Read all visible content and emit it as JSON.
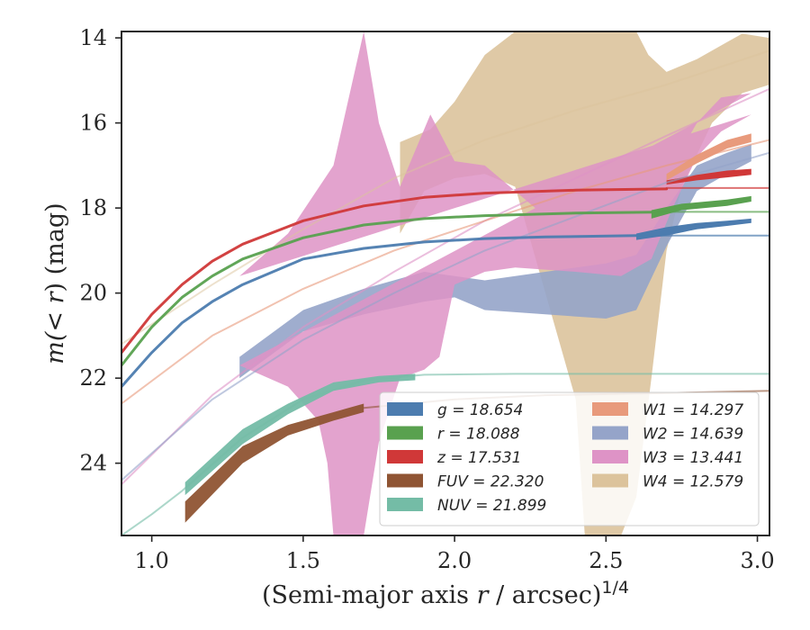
{
  "chart_data": {
    "type": "line",
    "xlabel": {
      "pre": "(Semi-major axis ",
      "var": "r",
      "post": " / arcsec)",
      "sup": "1/4"
    },
    "ylabel": {
      "pre": "m(",
      "var": "< r",
      "post": ") (mag)"
    },
    "xlim": [
      0.9,
      3.04
    ],
    "ylim": [
      25.7,
      13.85
    ],
    "y_inverted": true,
    "xticks": [
      1.0,
      1.5,
      2.0,
      2.5,
      3.0
    ],
    "xtick_labels": [
      "1.0",
      "1.5",
      "2.0",
      "2.5",
      "3.0"
    ],
    "yticks": [
      14,
      16,
      18,
      20,
      22,
      24
    ],
    "ytick_labels": [
      "14",
      "16",
      "18",
      "20",
      "22",
      "24"
    ],
    "grid": false,
    "legend_placement": "lower-right",
    "legend": [
      {
        "label": "g = 18.654",
        "color": "#4c7caf"
      },
      {
        "label": "r = 18.088",
        "color": "#59a14f"
      },
      {
        "label": "z = 17.531",
        "color": "#d03838"
      },
      {
        "label": "FUV = 22.320",
        "color": "#8f5433"
      },
      {
        "label": "NUV = 21.899",
        "color": "#74bca6"
      },
      {
        "label": "W1 = 14.297",
        "color": "#e89a7c"
      },
      {
        "label": "W2 = 14.639",
        "color": "#95a4c9"
      },
      {
        "label": "W3 = 13.441",
        "color": "#de93c6"
      },
      {
        "label": "W4 = 12.579",
        "color": "#dcc39c"
      }
    ],
    "bands": [
      {
        "name": "W4",
        "color": "#dcc39c",
        "opacity": 0.9,
        "upper": [
          [
            1.82,
            16.45
          ],
          [
            1.92,
            16.15
          ],
          [
            2.0,
            15.5
          ],
          [
            2.1,
            14.4
          ],
          [
            2.2,
            13.85
          ],
          [
            2.6,
            13.85
          ],
          [
            2.64,
            14.4
          ],
          [
            2.7,
            14.8
          ],
          [
            2.8,
            14.5
          ],
          [
            2.9,
            14.1
          ],
          [
            2.95,
            13.9
          ],
          [
            3.04,
            14.0
          ]
        ],
        "lower": [
          [
            1.82,
            18.6
          ],
          [
            1.9,
            17.6
          ],
          [
            2.0,
            17.3
          ],
          [
            2.1,
            17.2
          ],
          [
            2.2,
            17.5
          ],
          [
            2.3,
            20.0
          ],
          [
            2.4,
            22.5
          ],
          [
            2.43,
            25.7
          ],
          [
            2.55,
            25.7
          ],
          [
            2.6,
            24.8
          ],
          [
            2.65,
            22.0
          ],
          [
            2.7,
            19.0
          ],
          [
            2.75,
            17.5
          ],
          [
            2.85,
            16.0
          ],
          [
            2.95,
            15.3
          ],
          [
            3.04,
            15.1
          ]
        ]
      },
      {
        "name": "W2",
        "color": "#95a4c9",
        "opacity": 0.9,
        "upper": [
          [
            1.29,
            21.5
          ],
          [
            1.5,
            20.4
          ],
          [
            1.7,
            19.9
          ],
          [
            1.9,
            19.5
          ],
          [
            2.0,
            19.6
          ],
          [
            2.1,
            19.7
          ],
          [
            2.3,
            19.5
          ],
          [
            2.5,
            19.3
          ],
          [
            2.6,
            19.1
          ],
          [
            2.7,
            18.0
          ],
          [
            2.8,
            17.0
          ],
          [
            2.9,
            16.7
          ],
          [
            2.98,
            16.5
          ]
        ],
        "lower": [
          [
            1.29,
            22.0
          ],
          [
            1.5,
            20.9
          ],
          [
            1.7,
            20.5
          ],
          [
            1.9,
            20.2
          ],
          [
            2.0,
            20.1
          ],
          [
            2.1,
            20.4
          ],
          [
            2.3,
            20.5
          ],
          [
            2.5,
            20.6
          ],
          [
            2.6,
            20.4
          ],
          [
            2.7,
            18.9
          ],
          [
            2.8,
            17.6
          ],
          [
            2.9,
            17.2
          ],
          [
            2.98,
            16.9
          ]
        ]
      },
      {
        "name": "W3",
        "color": "#de93c6",
        "opacity": 0.85,
        "upper": [
          [
            1.29,
            19.6
          ],
          [
            1.45,
            18.6
          ],
          [
            1.6,
            17.0
          ],
          [
            1.7,
            13.85
          ],
          [
            1.75,
            16.0
          ],
          [
            1.82,
            17.5
          ],
          [
            1.92,
            15.8
          ],
          [
            2.0,
            16.9
          ],
          [
            2.1,
            17.0
          ],
          [
            2.2,
            17.6
          ],
          [
            2.3,
            18.2
          ],
          [
            2.4,
            18.4
          ],
          [
            2.55,
            18.6
          ],
          [
            2.63,
            18.6
          ],
          [
            2.68,
            18.0
          ],
          [
            2.72,
            17.0
          ],
          [
            2.8,
            16.0
          ],
          [
            2.88,
            15.4
          ],
          [
            2.98,
            15.3
          ]
        ],
        "lower": [
          [
            2.98,
            15.8
          ],
          [
            2.88,
            16.2
          ],
          [
            2.8,
            16.8
          ],
          [
            2.72,
            18.0
          ],
          [
            2.65,
            19.2
          ],
          [
            2.55,
            19.6
          ],
          [
            2.4,
            19.5
          ],
          [
            2.2,
            19.4
          ],
          [
            2.1,
            19.5
          ],
          [
            2.0,
            19.8
          ],
          [
            1.95,
            21.5
          ],
          [
            1.9,
            21.8
          ],
          [
            1.82,
            22.0
          ],
          [
            1.75,
            23.5
          ],
          [
            1.7,
            25.7
          ],
          [
            1.6,
            25.7
          ],
          [
            1.58,
            24.0
          ],
          [
            1.55,
            23.0
          ],
          [
            1.45,
            22.2
          ],
          [
            1.29,
            21.7
          ]
        ]
      },
      {
        "name": "NUV",
        "color": "#74bca6",
        "opacity": 0.95,
        "upper": [
          [
            1.11,
            24.45
          ],
          [
            1.3,
            23.2
          ],
          [
            1.45,
            22.6
          ],
          [
            1.6,
            22.1
          ],
          [
            1.75,
            21.95
          ],
          [
            1.87,
            21.9
          ]
        ],
        "lower": [
          [
            1.11,
            24.75
          ],
          [
            1.3,
            23.55
          ],
          [
            1.45,
            22.85
          ],
          [
            1.6,
            22.3
          ],
          [
            1.75,
            22.1
          ],
          [
            1.87,
            22.05
          ]
        ]
      },
      {
        "name": "FUV",
        "color": "#8f5433",
        "opacity": 0.95,
        "upper": [
          [
            1.11,
            24.9
          ],
          [
            1.3,
            23.6
          ],
          [
            1.45,
            23.1
          ],
          [
            1.6,
            22.8
          ],
          [
            1.7,
            22.6
          ]
        ],
        "lower": [
          [
            1.11,
            25.4
          ],
          [
            1.3,
            24.0
          ],
          [
            1.45,
            23.35
          ],
          [
            1.6,
            23.0
          ],
          [
            1.7,
            22.8
          ]
        ]
      },
      {
        "name": "r",
        "color": "#59a14f",
        "opacity": 1,
        "upper": [
          [
            2.65,
            18.05
          ],
          [
            2.75,
            17.9
          ],
          [
            2.9,
            17.8
          ],
          [
            2.98,
            17.72
          ]
        ],
        "lower": [
          [
            2.65,
            18.25
          ],
          [
            2.75,
            18.05
          ],
          [
            2.9,
            17.95
          ],
          [
            2.98,
            17.85
          ]
        ]
      },
      {
        "name": "z",
        "color": "#d03838",
        "opacity": 1,
        "upper": [
          [
            2.7,
            17.35
          ],
          [
            2.8,
            17.22
          ],
          [
            2.9,
            17.12
          ],
          [
            2.98,
            17.08
          ]
        ],
        "lower": [
          [
            2.7,
            17.45
          ],
          [
            2.8,
            17.35
          ],
          [
            2.9,
            17.28
          ],
          [
            2.98,
            17.22
          ]
        ]
      },
      {
        "name": "g",
        "color": "#4c7caf",
        "opacity": 1,
        "upper": [
          [
            2.6,
            18.6
          ],
          [
            2.7,
            18.45
          ],
          [
            2.8,
            18.35
          ],
          [
            2.9,
            18.3
          ],
          [
            2.98,
            18.25
          ]
        ],
        "lower": [
          [
            2.6,
            18.75
          ],
          [
            2.7,
            18.65
          ],
          [
            2.8,
            18.5
          ],
          [
            2.9,
            18.42
          ],
          [
            2.98,
            18.35
          ]
        ]
      },
      {
        "name": "W1",
        "color": "#e89a7c",
        "opacity": 1,
        "upper": [
          [
            2.7,
            17.2
          ],
          [
            2.8,
            16.75
          ],
          [
            2.9,
            16.4
          ],
          [
            2.98,
            16.25
          ]
        ],
        "lower": [
          [
            2.7,
            17.35
          ],
          [
            2.8,
            16.95
          ],
          [
            2.9,
            16.6
          ],
          [
            2.98,
            16.45
          ]
        ]
      }
    ],
    "curves": [
      {
        "name": "W4",
        "color": "#dcc39c",
        "opacity": 0.5,
        "width": 2,
        "points": [
          [
            0.9,
            21.2
          ],
          [
            1.2,
            19.8
          ],
          [
            1.5,
            18.5
          ],
          [
            1.8,
            17.3
          ],
          [
            2.1,
            16.4
          ],
          [
            2.4,
            15.7
          ],
          [
            2.7,
            15.1
          ],
          [
            3.04,
            14.3
          ]
        ]
      },
      {
        "name": "W3",
        "color": "#de93c6",
        "opacity": 0.6,
        "width": 2,
        "points": [
          [
            0.9,
            24.5
          ],
          [
            1.2,
            22.4
          ],
          [
            1.5,
            20.8
          ],
          [
            1.8,
            19.5
          ],
          [
            2.1,
            18.3
          ],
          [
            2.4,
            17.3
          ],
          [
            2.7,
            16.3
          ],
          [
            3.04,
            15.2
          ]
        ]
      },
      {
        "name": "W2",
        "color": "#95a4c9",
        "opacity": 0.6,
        "width": 2,
        "points": [
          [
            0.9,
            24.4
          ],
          [
            1.2,
            22.5
          ],
          [
            1.5,
            21.1
          ],
          [
            1.8,
            20.0
          ],
          [
            2.1,
            19.0
          ],
          [
            2.4,
            18.2
          ],
          [
            2.7,
            17.4
          ],
          [
            3.04,
            16.7
          ]
        ]
      },
      {
        "name": "W1",
        "color": "#e89a7c",
        "opacity": 0.6,
        "width": 2,
        "points": [
          [
            0.9,
            22.6
          ],
          [
            1.2,
            21.0
          ],
          [
            1.5,
            19.9
          ],
          [
            1.8,
            19.0
          ],
          [
            2.1,
            18.3
          ],
          [
            2.4,
            17.6
          ],
          [
            2.7,
            17.0
          ],
          [
            3.04,
            16.4
          ]
        ]
      },
      {
        "name": "NUV",
        "color": "#74bca6",
        "opacity": 0.6,
        "width": 2,
        "points": [
          [
            0.9,
            25.7
          ],
          [
            1.0,
            25.2
          ],
          [
            1.1,
            24.65
          ],
          [
            1.3,
            23.4
          ],
          [
            1.5,
            22.5
          ],
          [
            1.7,
            22.05
          ],
          [
            1.9,
            21.92
          ],
          [
            2.2,
            21.9
          ],
          [
            3.04,
            21.9
          ]
        ]
      },
      {
        "name": "FUV",
        "color": "#8f5433",
        "opacity": 0.6,
        "width": 2,
        "points": [
          [
            1.7,
            22.7
          ],
          [
            2.0,
            22.5
          ],
          [
            2.3,
            22.4
          ],
          [
            2.7,
            22.35
          ],
          [
            3.04,
            22.3
          ]
        ]
      },
      {
        "name": "g",
        "color": "#4c7caf",
        "opacity": 0.7,
        "width": 2,
        "points": [
          [
            3.04,
            18.65
          ],
          [
            2.6,
            18.65
          ]
        ]
      },
      {
        "name": "r",
        "color": "#59a14f",
        "opacity": 0.7,
        "width": 2,
        "points": [
          [
            3.04,
            18.09
          ],
          [
            2.65,
            18.09
          ]
        ]
      },
      {
        "name": "z",
        "color": "#d03838",
        "opacity": 0.7,
        "width": 2,
        "points": [
          [
            3.04,
            17.53
          ],
          [
            2.7,
            17.53
          ]
        ]
      },
      {
        "name": "g",
        "color": "#4c7caf",
        "opacity": 0.95,
        "width": 3,
        "points": [
          [
            0.9,
            22.2
          ],
          [
            1.0,
            21.4
          ],
          [
            1.1,
            20.7
          ],
          [
            1.2,
            20.2
          ],
          [
            1.3,
            19.8
          ],
          [
            1.5,
            19.2
          ],
          [
            1.7,
            18.95
          ],
          [
            1.9,
            18.8
          ],
          [
            2.1,
            18.72
          ],
          [
            2.3,
            18.68
          ],
          [
            2.6,
            18.65
          ]
        ]
      },
      {
        "name": "r",
        "color": "#59a14f",
        "opacity": 0.95,
        "width": 3,
        "points": [
          [
            0.9,
            21.7
          ],
          [
            1.0,
            20.8
          ],
          [
            1.1,
            20.1
          ],
          [
            1.2,
            19.6
          ],
          [
            1.3,
            19.2
          ],
          [
            1.5,
            18.7
          ],
          [
            1.7,
            18.4
          ],
          [
            1.9,
            18.25
          ],
          [
            2.1,
            18.18
          ],
          [
            2.4,
            18.12
          ],
          [
            2.65,
            18.1
          ]
        ]
      },
      {
        "name": "z",
        "color": "#d03838",
        "opacity": 0.95,
        "width": 3,
        "points": [
          [
            0.9,
            21.4
          ],
          [
            1.0,
            20.5
          ],
          [
            1.1,
            19.8
          ],
          [
            1.2,
            19.25
          ],
          [
            1.3,
            18.85
          ],
          [
            1.5,
            18.3
          ],
          [
            1.7,
            17.95
          ],
          [
            1.9,
            17.75
          ],
          [
            2.1,
            17.65
          ],
          [
            2.4,
            17.58
          ],
          [
            2.7,
            17.55
          ]
        ]
      }
    ]
  }
}
